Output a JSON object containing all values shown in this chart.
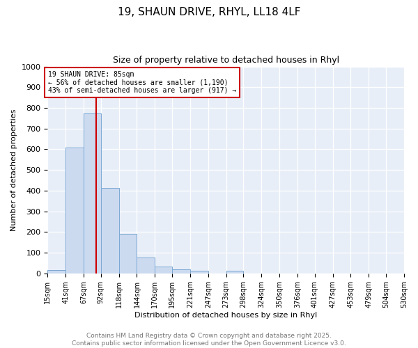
{
  "title1": "19, SHAUN DRIVE, RHYL, LL18 4LF",
  "title2": "Size of property relative to detached houses in Rhyl",
  "xlabel": "Distribution of detached houses by size in Rhyl",
  "ylabel": "Number of detached properties",
  "bins": [
    15,
    41,
    67,
    92,
    118,
    144,
    170,
    195,
    221,
    247,
    273,
    298,
    324,
    350,
    376,
    401,
    427,
    453,
    479,
    504,
    530
  ],
  "counts": [
    15,
    608,
    773,
    413,
    192,
    76,
    34,
    18,
    13,
    0,
    13,
    0,
    0,
    0,
    0,
    0,
    0,
    0,
    0,
    0
  ],
  "bar_color": "#ccdaf0",
  "bar_edge_color": "#7aa8d4",
  "vline_x": 85,
  "vline_color": "#cc0000",
  "annotation_text": "19 SHAUN DRIVE: 85sqm\n← 56% of detached houses are smaller (1,190)\n43% of semi-detached houses are larger (917) →",
  "annotation_box_color": "#ffffff",
  "annotation_box_edge": "#cc0000",
  "ylim": [
    0,
    1000
  ],
  "yticks": [
    0,
    100,
    200,
    300,
    400,
    500,
    600,
    700,
    800,
    900,
    1000
  ],
  "bg_color": "#e8eef8",
  "fig_bg_color": "#ffffff",
  "grid_color": "#ffffff",
  "tick_label_fontsize": 7,
  "axis_label_fontsize": 8,
  "ytick_fontsize": 8,
  "footer_text": "Contains HM Land Registry data © Crown copyright and database right 2025.\nContains public sector information licensed under the Open Government Licence v3.0.",
  "footer_color": "#777777",
  "footer_fontsize": 6.5
}
